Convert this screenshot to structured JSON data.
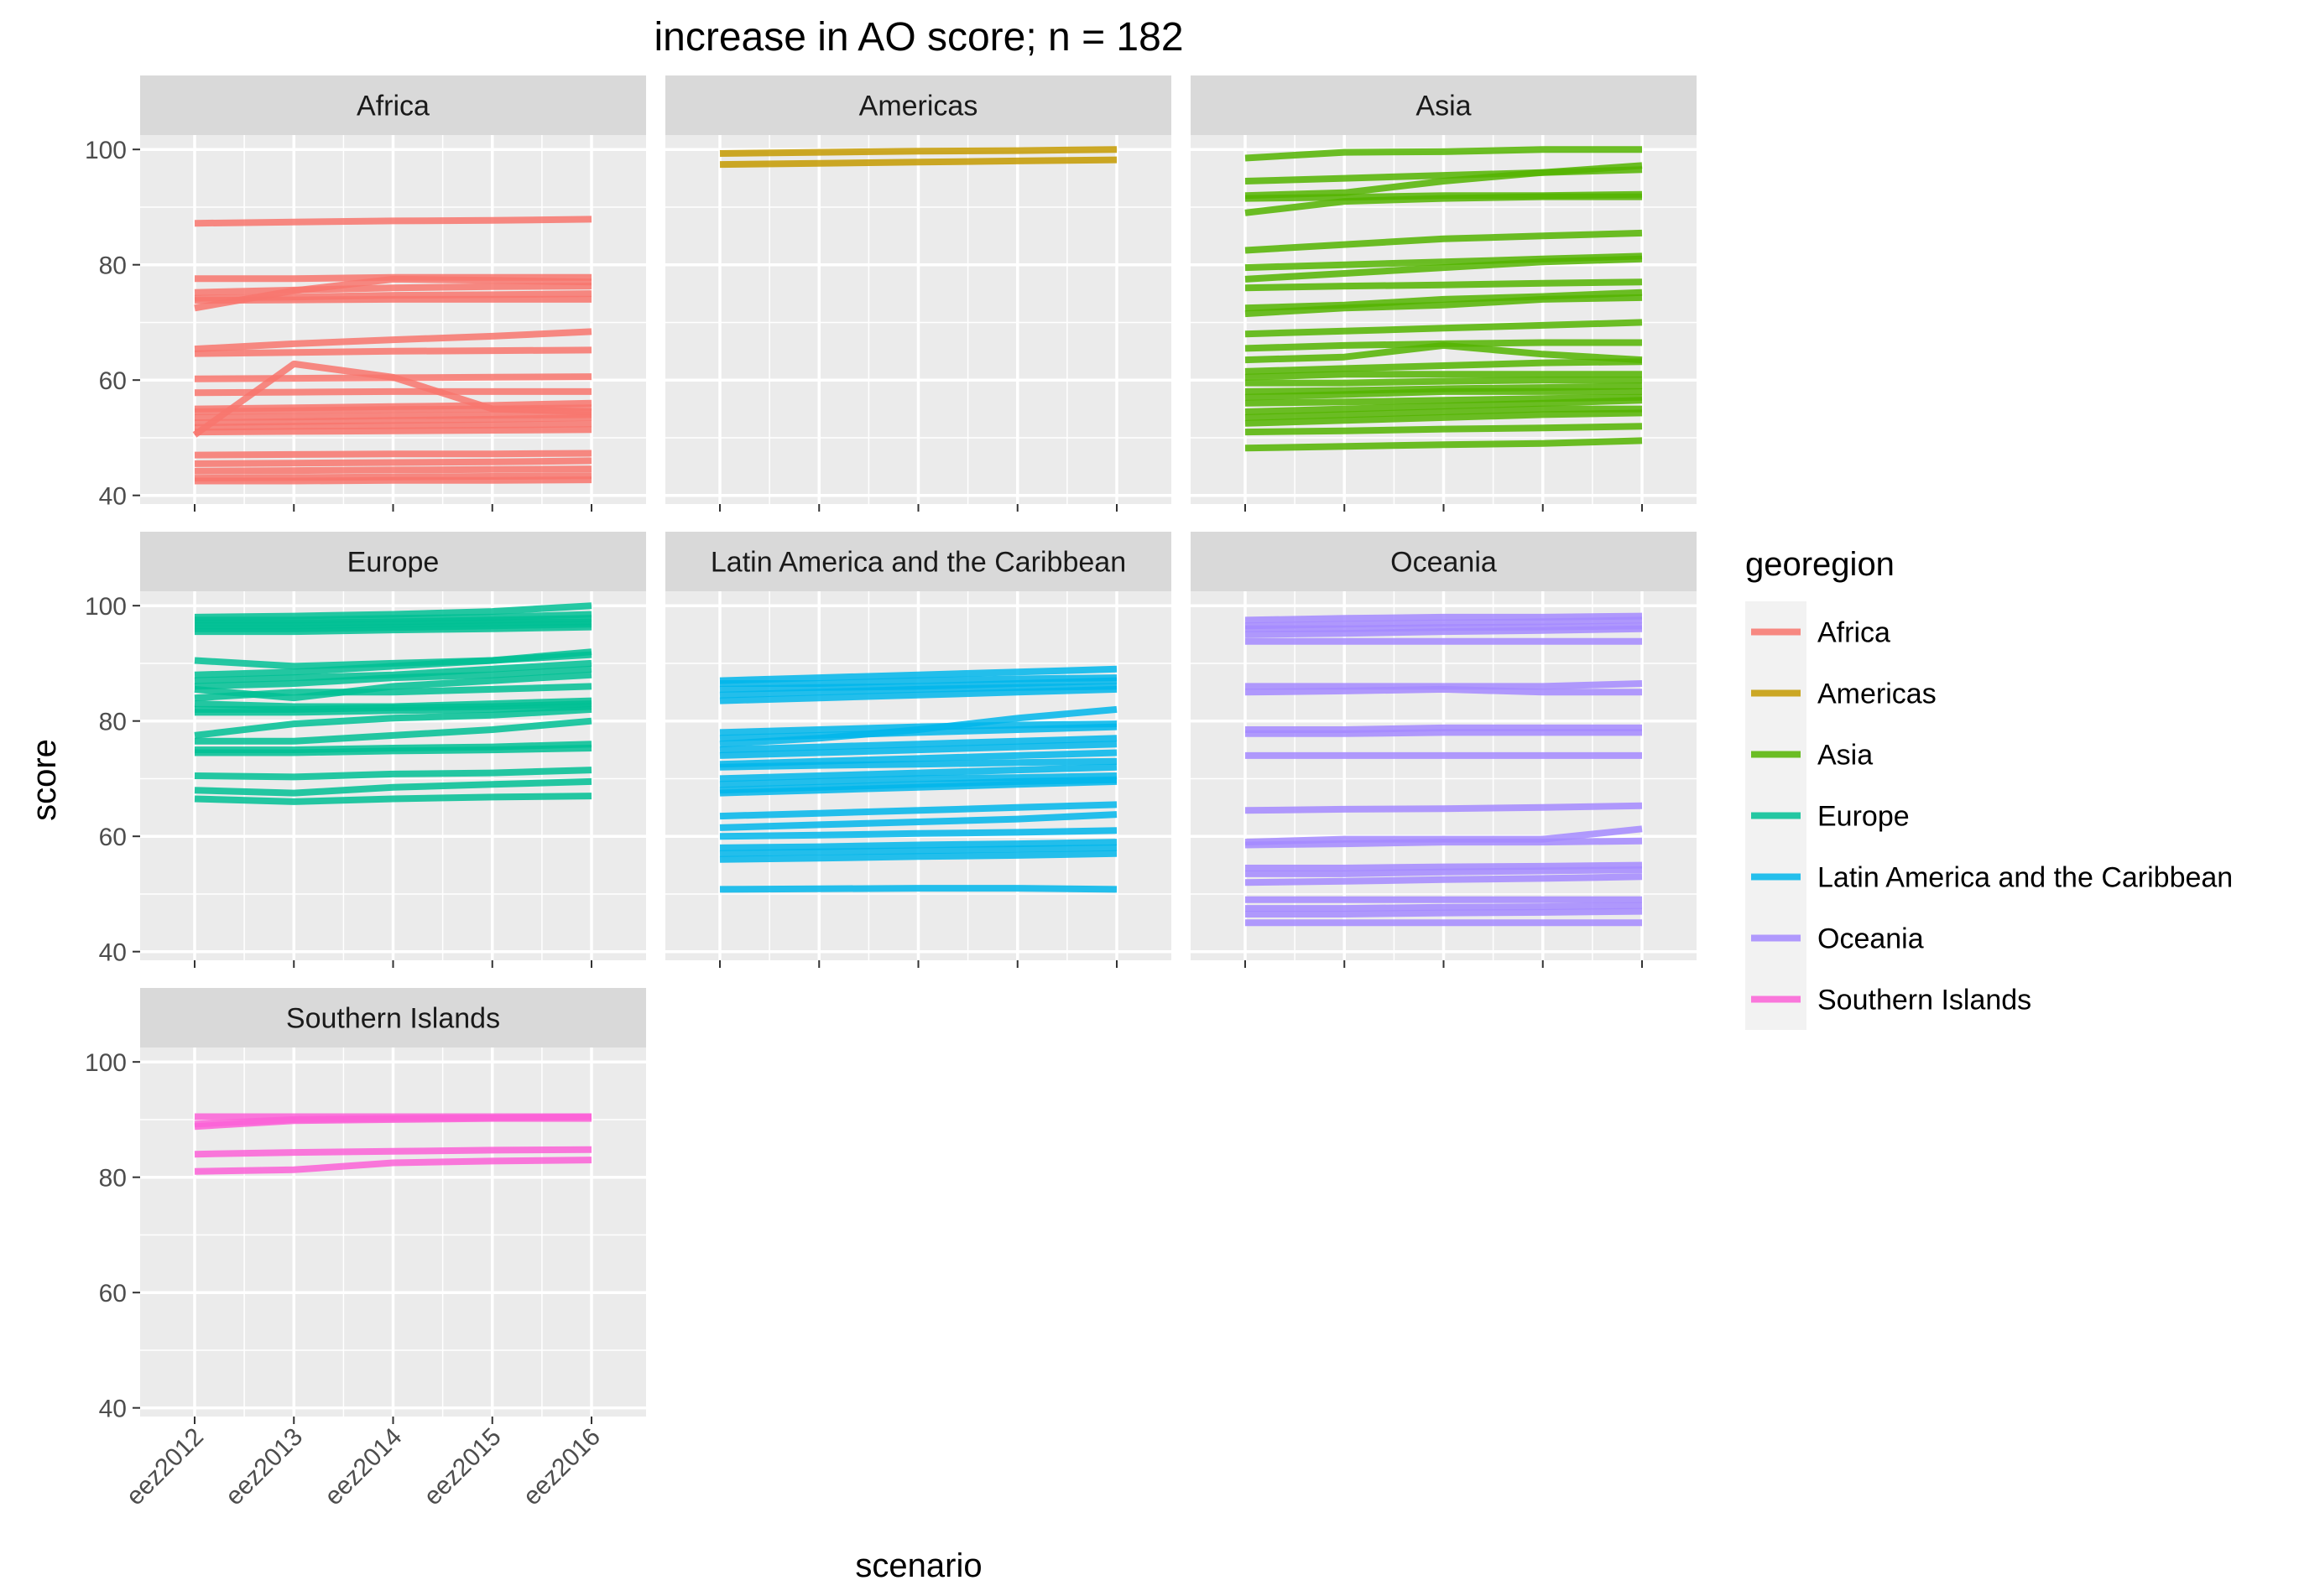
{
  "chart_data": {
    "type": "line",
    "title": "increase in AO score; n = 182",
    "xlabel": "scenario",
    "ylabel": "score",
    "categories": [
      "eez2012",
      "eez2013",
      "eez2014",
      "eez2015",
      "eez2016"
    ],
    "ylim": [
      38.5,
      102.5
    ],
    "yticks": [
      40,
      60,
      80,
      100
    ],
    "grid": true,
    "legend": {
      "title": "georegion",
      "position": "right",
      "items": [
        "Africa",
        "Americas",
        "Asia",
        "Europe",
        "Latin America and the Caribbean",
        "Oceania",
        "Southern Islands"
      ]
    },
    "colors": {
      "Africa": "#F8766D",
      "Americas": "#C49A00",
      "Asia": "#53B400",
      "Europe": "#00C094",
      "Latin America and the Caribbean": "#00B6EB",
      "Oceania": "#A58AFF",
      "Southern Islands": "#FB61D7"
    },
    "panels": [
      {
        "name": "Africa",
        "series": [
          [
            87.2,
            87.4,
            87.6,
            87.7,
            87.9
          ],
          [
            77.6,
            77.6,
            77.8,
            77.8,
            77.8
          ],
          [
            74.2,
            74.4,
            74.7,
            74.8,
            75.0
          ],
          [
            72.5,
            75.5,
            77.5,
            77.3,
            77.0
          ],
          [
            73.8,
            73.9,
            74.0,
            74.0,
            74.0
          ],
          [
            75.2,
            75.6,
            76.0,
            76.2,
            76.3
          ],
          [
            65.4,
            66.3,
            67.0,
            67.6,
            68.4
          ],
          [
            64.6,
            64.8,
            65.0,
            65.1,
            65.2
          ],
          [
            60.2,
            60.3,
            60.4,
            60.5,
            60.6
          ],
          [
            57.8,
            57.9,
            58.0,
            58.0,
            58.0
          ],
          [
            50.5,
            62.8,
            60.5,
            55.0,
            54.5
          ],
          [
            53.5,
            53.6,
            53.8,
            53.9,
            54.0
          ],
          [
            52.6,
            52.8,
            53.0,
            53.2,
            53.5
          ],
          [
            51.8,
            52.0,
            52.1,
            52.2,
            52.4
          ],
          [
            54.5,
            54.7,
            54.9,
            55.0,
            55.2
          ],
          [
            55.0,
            55.2,
            55.4,
            55.6,
            56.0
          ],
          [
            51.0,
            51.1,
            51.2,
            51.3,
            51.4
          ],
          [
            47.0,
            47.1,
            47.2,
            47.2,
            47.3
          ],
          [
            45.5,
            45.6,
            45.7,
            45.8,
            46.0
          ],
          [
            44.2,
            44.3,
            44.4,
            44.5,
            44.6
          ],
          [
            43.0,
            43.1,
            43.2,
            43.3,
            43.4
          ],
          [
            42.5,
            42.5,
            42.6,
            42.6,
            42.7
          ]
        ]
      },
      {
        "name": "Americas",
        "series": [
          [
            99.3,
            99.5,
            99.7,
            99.8,
            100.0
          ],
          [
            97.4,
            97.6,
            97.8,
            98.0,
            98.2
          ]
        ]
      },
      {
        "name": "Asia",
        "series": [
          [
            98.5,
            99.5,
            99.6,
            100.0,
            100.0
          ],
          [
            94.5,
            95.0,
            95.5,
            96.0,
            96.5
          ],
          [
            92.0,
            92.5,
            94.5,
            96.0,
            97.2
          ],
          [
            91.5,
            91.7,
            92.0,
            92.0,
            92.2
          ],
          [
            89.0,
            91.0,
            91.5,
            91.8,
            91.8
          ],
          [
            82.5,
            83.5,
            84.5,
            85.0,
            85.5
          ],
          [
            79.5,
            80.0,
            80.5,
            81.0,
            81.5
          ],
          [
            77.5,
            78.5,
            79.5,
            80.5,
            81.0
          ],
          [
            76.0,
            76.3,
            76.5,
            76.8,
            77.0
          ],
          [
            72.5,
            73.0,
            74.0,
            74.5,
            75.2
          ],
          [
            71.5,
            72.5,
            73.0,
            74.0,
            74.3
          ],
          [
            68.0,
            68.5,
            69.0,
            69.5,
            70.0
          ],
          [
            65.5,
            66.0,
            66.3,
            66.5,
            66.5
          ],
          [
            63.5,
            64.0,
            66.0,
            64.5,
            63.5
          ],
          [
            61.5,
            62.0,
            62.5,
            63.0,
            63.2
          ],
          [
            60.5,
            61.0,
            61.0,
            61.0,
            61.0
          ],
          [
            59.5,
            59.5,
            59.8,
            60.0,
            60.0
          ],
          [
            58.0,
            58.2,
            58.5,
            58.7,
            59.0
          ],
          [
            57.0,
            57.5,
            58.0,
            58.0,
            58.0
          ],
          [
            56.0,
            56.2,
            56.5,
            56.8,
            57.0
          ],
          [
            54.5,
            55.0,
            55.5,
            56.0,
            56.5
          ],
          [
            53.5,
            54.0,
            54.5,
            55.0,
            55.0
          ],
          [
            52.5,
            53.0,
            53.5,
            54.0,
            54.3
          ],
          [
            51.0,
            51.2,
            51.5,
            51.7,
            52.0
          ],
          [
            48.2,
            48.5,
            48.8,
            49.0,
            49.5
          ]
        ]
      },
      {
        "name": "Europe",
        "series": [
          [
            98.0,
            98.2,
            98.5,
            99.0,
            100.0
          ],
          [
            97.5,
            97.5,
            97.8,
            98.0,
            98.5
          ],
          [
            97.0,
            97.0,
            97.2,
            97.5,
            97.8
          ],
          [
            96.5,
            96.5,
            96.8,
            97.0,
            97.2
          ],
          [
            96.0,
            96.0,
            96.2,
            96.5,
            96.8
          ],
          [
            95.5,
            95.5,
            95.8,
            96.0,
            96.3
          ],
          [
            90.5,
            89.5,
            90.0,
            90.5,
            91.5
          ],
          [
            88.0,
            88.5,
            89.5,
            90.5,
            92.0
          ],
          [
            87.0,
            87.5,
            88.0,
            89.0,
            90.0
          ],
          [
            86.0,
            86.5,
            87.5,
            88.0,
            89.0
          ],
          [
            85.5,
            84.0,
            86.0,
            87.0,
            88.0
          ],
          [
            84.0,
            85.0,
            85.0,
            85.5,
            86.0
          ],
          [
            83.0,
            82.5,
            82.5,
            83.0,
            83.5
          ],
          [
            82.0,
            82.0,
            82.3,
            82.5,
            83.0
          ],
          [
            81.5,
            81.5,
            81.8,
            82.0,
            82.5
          ],
          [
            77.5,
            79.5,
            80.5,
            81.0,
            82.0
          ],
          [
            76.5,
            76.5,
            77.5,
            78.5,
            80.0
          ],
          [
            75.0,
            75.0,
            75.3,
            75.5,
            76.0
          ],
          [
            74.5,
            74.5,
            74.8,
            75.0,
            75.3
          ],
          [
            70.5,
            70.3,
            70.8,
            71.0,
            71.5
          ],
          [
            68.0,
            67.5,
            68.5,
            69.0,
            69.5
          ],
          [
            66.5,
            66.0,
            66.5,
            66.8,
            67.0
          ]
        ]
      },
      {
        "name": "Latin America and the Caribbean",
        "series": [
          [
            87.0,
            87.5,
            88.0,
            88.5,
            89.0
          ],
          [
            86.5,
            86.5,
            87.0,
            87.3,
            87.5
          ],
          [
            85.5,
            85.8,
            86.0,
            86.5,
            87.0
          ],
          [
            84.5,
            85.0,
            85.5,
            85.8,
            86.0
          ],
          [
            83.5,
            84.0,
            84.5,
            85.0,
            85.5
          ],
          [
            78.0,
            78.5,
            79.0,
            79.3,
            79.5
          ],
          [
            77.0,
            77.5,
            78.0,
            78.5,
            79.0
          ],
          [
            76.0,
            77.0,
            78.5,
            80.5,
            82.0
          ],
          [
            75.0,
            75.5,
            76.0,
            76.5,
            77.0
          ],
          [
            74.0,
            74.5,
            75.0,
            75.5,
            76.0
          ],
          [
            72.5,
            73.0,
            73.5,
            74.0,
            74.5
          ],
          [
            72.0,
            72.3,
            72.5,
            72.8,
            73.0
          ],
          [
            70.0,
            70.5,
            71.0,
            71.5,
            72.0
          ],
          [
            69.0,
            69.5,
            70.0,
            70.2,
            70.5
          ],
          [
            68.0,
            68.5,
            69.0,
            69.5,
            69.8
          ],
          [
            67.5,
            68.0,
            68.5,
            69.0,
            69.5
          ],
          [
            63.5,
            64.0,
            64.5,
            65.0,
            65.5
          ],
          [
            61.5,
            62.0,
            62.5,
            63.0,
            63.8
          ],
          [
            60.0,
            60.2,
            60.5,
            60.7,
            61.0
          ],
          [
            58.0,
            58.2,
            58.5,
            58.7,
            59.0
          ],
          [
            57.0,
            57.3,
            57.5,
            57.8,
            58.0
          ],
          [
            56.0,
            56.2,
            56.5,
            56.7,
            57.0
          ],
          [
            50.8,
            50.9,
            51.0,
            51.0,
            50.8
          ]
        ]
      },
      {
        "name": "Oceania",
        "series": [
          [
            97.5,
            97.8,
            98.0,
            98.0,
            98.2
          ],
          [
            96.5,
            96.8,
            97.0,
            97.2,
            97.5
          ],
          [
            96.0,
            96.0,
            96.2,
            96.3,
            96.5
          ],
          [
            95.0,
            95.2,
            95.5,
            95.7,
            96.0
          ],
          [
            93.8,
            93.8,
            93.8,
            93.8,
            93.8
          ],
          [
            86.0,
            86.0,
            86.0,
            86.0,
            86.5
          ],
          [
            85.0,
            85.2,
            85.5,
            85.0,
            85.0
          ],
          [
            78.5,
            78.5,
            78.8,
            78.8,
            78.8
          ],
          [
            77.8,
            77.8,
            78.0,
            78.0,
            78.0
          ],
          [
            74.0,
            74.0,
            74.0,
            74.0,
            74.0
          ],
          [
            64.5,
            64.7,
            64.8,
            65.0,
            65.3
          ],
          [
            59.0,
            59.5,
            59.5,
            59.5,
            61.3
          ],
          [
            58.5,
            58.7,
            59.0,
            59.0,
            59.2
          ],
          [
            54.5,
            54.5,
            54.7,
            54.8,
            55.0
          ],
          [
            53.5,
            53.5,
            53.8,
            54.0,
            54.2
          ],
          [
            52.0,
            52.2,
            52.5,
            52.7,
            53.0
          ],
          [
            49.0,
            49.0,
            49.0,
            49.0,
            49.0
          ],
          [
            47.5,
            47.5,
            47.7,
            47.8,
            48.0
          ],
          [
            46.5,
            46.5,
            46.7,
            46.8,
            47.0
          ],
          [
            45.0,
            45.0,
            45.0,
            45.0,
            45.0
          ]
        ]
      },
      {
        "name": "Southern Islands",
        "series": [
          [
            90.5,
            90.5,
            90.5,
            90.5,
            90.5
          ],
          [
            89.2,
            90.0,
            90.2,
            90.3,
            90.5
          ],
          [
            88.8,
            89.8,
            90.0,
            90.2,
            90.2
          ],
          [
            84.0,
            84.3,
            84.5,
            84.7,
            84.8
          ],
          [
            81.0,
            81.3,
            82.5,
            82.8,
            83.0
          ]
        ]
      }
    ]
  }
}
